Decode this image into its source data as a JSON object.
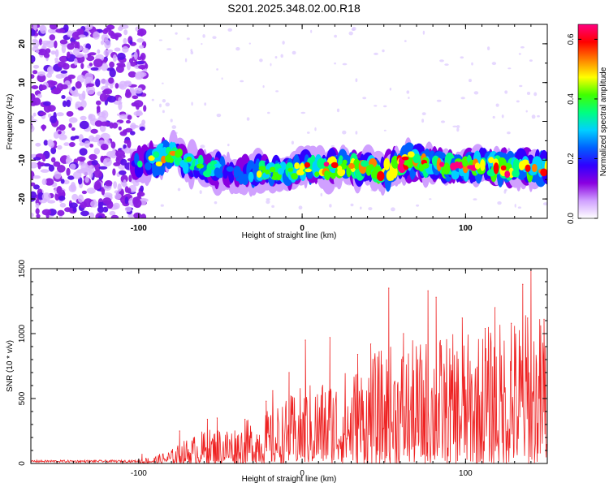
{
  "figure_title": "S201.2025.348.02.00.R18",
  "colors": {
    "line": "#ee2222",
    "frame": "#000000"
  },
  "chart_data": [
    {
      "type": "heatmap",
      "title": "S201.2025.348.02.00.R18",
      "xlabel": "Height of straight line (km)",
      "ylabel": "Frequency (Hz)",
      "xlim": [
        -166,
        150
      ],
      "ylim": [
        -25,
        25
      ],
      "xticks": [
        -100,
        0,
        100
      ],
      "yticks": [
        -20,
        -10,
        0,
        10,
        20
      ],
      "colorbar": {
        "label": "Normalized spectral amplitude",
        "range": [
          0,
          0.65
        ],
        "ticks": [
          "0.0",
          "0.2",
          "0.4",
          "0.6"
        ],
        "tick_values": [
          0,
          0.2,
          0.4,
          0.6
        ],
        "palette": [
          "#ffffff",
          "#d0a0ff",
          "#8a00e0",
          "#3000ff",
          "#0060ff",
          "#00d0ff",
          "#00ff80",
          "#40ff00",
          "#ffff00",
          "#ff8000",
          "#ff0000",
          "#ff0080"
        ]
      },
      "noise_region": {
        "x_range": [
          -166,
          -100
        ],
        "y_range": [
          -25,
          25
        ]
      },
      "signal_track": {
        "x": [
          -100,
          -90,
          -80,
          -70,
          -60,
          -50,
          -40,
          -30,
          -20,
          -10,
          0,
          10,
          20,
          30,
          40,
          50,
          60,
          70,
          80,
          90,
          100,
          110,
          120,
          130,
          140,
          150
        ],
        "freq_hz": [
          -11,
          -10,
          -8,
          -11,
          -12,
          -13,
          -14,
          -13,
          -13,
          -13,
          -12,
          -12,
          -12,
          -12,
          -12,
          -13,
          -11,
          -10,
          -11,
          -12,
          -12,
          -11,
          -12,
          -12,
          -12,
          -12
        ],
        "amplitude": [
          0.25,
          0.35,
          0.45,
          0.3,
          0.3,
          0.25,
          0.2,
          0.3,
          0.35,
          0.35,
          0.4,
          0.45,
          0.45,
          0.45,
          0.45,
          0.5,
          0.55,
          0.5,
          0.45,
          0.45,
          0.45,
          0.45,
          0.5,
          0.45,
          0.45,
          0.45
        ]
      }
    },
    {
      "type": "line",
      "xlabel": "Height of straight line (km)",
      "ylabel": "SNR (10 * v/v)",
      "xlim": [
        -166,
        150
      ],
      "ylim": [
        0,
        1500
      ],
      "xticks": [
        -100,
        0,
        100
      ],
      "yticks": [
        0,
        500,
        1000,
        1500
      ],
      "envelope": {
        "x": [
          -166,
          -120,
          -100,
          -90,
          -80,
          -70,
          -60,
          -50,
          -40,
          -30,
          -20,
          -10,
          0,
          10,
          20,
          30,
          40,
          50,
          60,
          70,
          80,
          90,
          100,
          110,
          120,
          130,
          140,
          150
        ],
        "max": [
          30,
          30,
          40,
          60,
          110,
          200,
          260,
          290,
          300,
          360,
          420,
          500,
          600,
          650,
          700,
          750,
          820,
          900,
          950,
          950,
          1000,
          1000,
          1000,
          1050,
          1100,
          1150,
          1200,
          1150
        ]
      },
      "peaks": [
        {
          "x": -98,
          "y": 70
        },
        {
          "x": -75,
          "y": 250
        },
        {
          "x": -58,
          "y": 340
        },
        {
          "x": -52,
          "y": 350
        },
        {
          "x": -35,
          "y": 340
        },
        {
          "x": -22,
          "y": 480
        },
        {
          "x": -18,
          "y": 560
        },
        {
          "x": -8,
          "y": 700
        },
        {
          "x": 2,
          "y": 950
        },
        {
          "x": 17,
          "y": 970
        },
        {
          "x": 34,
          "y": 840
        },
        {
          "x": 42,
          "y": 920
        },
        {
          "x": 53,
          "y": 1350
        },
        {
          "x": 62,
          "y": 1000
        },
        {
          "x": 77,
          "y": 1330
        },
        {
          "x": 82,
          "y": 1280
        },
        {
          "x": 98,
          "y": 1120
        },
        {
          "x": 112,
          "y": 1040
        },
        {
          "x": 118,
          "y": 1200
        },
        {
          "x": 128,
          "y": 1080
        },
        {
          "x": 135,
          "y": 1380
        },
        {
          "x": 138,
          "y": 1120
        },
        {
          "x": 140,
          "y": 1500
        },
        {
          "x": 148,
          "y": 1110
        }
      ]
    }
  ]
}
